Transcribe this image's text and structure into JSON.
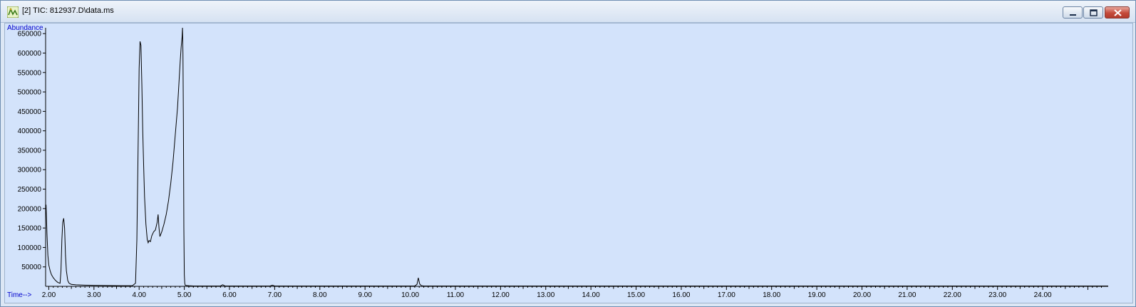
{
  "window": {
    "title": "[2] TIC: 812937.D\\data.ms",
    "icon": "chromatogram-app-icon",
    "controls": [
      "minimize",
      "maximize",
      "close"
    ]
  },
  "chart_data": {
    "type": "line",
    "title": "",
    "xlabel": "Time-->",
    "ylabel": "Abundance",
    "xlim": [
      1.93,
      25.45
    ],
    "ylim": [
      0,
      665000
    ],
    "grid": false,
    "x_ticks": [
      2,
      3,
      4,
      5,
      6,
      7,
      8,
      9,
      10,
      11,
      12,
      13,
      14,
      15,
      16,
      17,
      18,
      19,
      20,
      21,
      22,
      23,
      24
    ],
    "x_tick_labels": [
      "2.00",
      "3.00",
      "4.00",
      "5.00",
      "6.00",
      "7.00",
      "8.00",
      "9.00",
      "10.00",
      "11.00",
      "12.00",
      "13.00",
      "14.00",
      "15.00",
      "16.00",
      "17.00",
      "18.00",
      "19.00",
      "20.00",
      "21.00",
      "22.00",
      "23.00",
      "24.00"
    ],
    "y_ticks": [
      50000,
      100000,
      150000,
      200000,
      250000,
      300000,
      350000,
      400000,
      450000,
      500000,
      550000,
      600000,
      650000
    ],
    "y_tick_labels": [
      "50000",
      "100000",
      "150000",
      "200000",
      "250000",
      "300000",
      "350000",
      "400000",
      "450000",
      "500000",
      "550000",
      "600000",
      "650000"
    ],
    "series": [
      {
        "color": "#000000",
        "x": [
          1.94,
          1.96,
          1.98,
          2.0,
          2.03,
          2.06,
          2.1,
          2.15,
          2.2,
          2.25,
          2.27,
          2.29,
          2.31,
          2.33,
          2.35,
          2.37,
          2.39,
          2.42,
          2.45,
          2.5,
          2.6,
          2.8,
          3.0,
          3.3,
          3.6,
          3.85,
          3.92,
          3.95,
          3.98,
          4.0,
          4.02,
          4.04,
          4.06,
          4.08,
          4.1,
          4.12,
          4.15,
          4.18,
          4.2,
          4.22,
          4.25,
          4.28,
          4.32,
          4.36,
          4.4,
          4.42,
          4.44,
          4.46,
          4.5,
          4.55,
          4.6,
          4.65,
          4.7,
          4.75,
          4.8,
          4.85,
          4.88,
          4.91,
          4.93,
          4.95,
          4.96,
          4.97,
          4.98,
          4.99,
          5.0,
          5.01,
          5.02,
          5.05,
          5.1,
          5.2,
          5.5,
          5.8,
          5.85,
          5.9,
          6.0,
          6.5,
          6.9,
          6.95,
          7.0,
          7.5,
          8.0,
          8.5,
          9.0,
          9.5,
          10.0,
          10.1,
          10.15,
          10.18,
          10.21,
          10.25,
          10.3,
          10.5,
          11.0,
          12.0,
          13.0,
          14.0,
          15.0,
          16.0,
          17.0,
          18.0,
          19.0,
          20.0,
          21.0,
          22.0,
          23.0,
          24.0,
          25.0,
          25.45
        ],
        "y": [
          210000,
          135000,
          80000,
          55000,
          40000,
          30000,
          22000,
          15000,
          10000,
          8000,
          40000,
          120000,
          165000,
          175000,
          150000,
          80000,
          40000,
          15000,
          8000,
          5000,
          4000,
          3000,
          2500,
          2000,
          1500,
          1500,
          8000,
          120000,
          380000,
          560000,
          630000,
          620000,
          520000,
          400000,
          310000,
          230000,
          160000,
          120000,
          112000,
          118000,
          115000,
          130000,
          140000,
          145000,
          165000,
          185000,
          150000,
          128000,
          140000,
          160000,
          185000,
          220000,
          265000,
          320000,
          390000,
          460000,
          520000,
          580000,
          615000,
          640000,
          665000,
          600000,
          420000,
          150000,
          30000,
          8000,
          3000,
          2000,
          1500,
          1000,
          1000,
          1000,
          4000,
          1000,
          1000,
          1000,
          1000,
          3000,
          1000,
          1000,
          1000,
          1000,
          1000,
          1000,
          1000,
          1000,
          5000,
          22000,
          6000,
          1500,
          1000,
          1000,
          1000,
          1000,
          1000,
          1000,
          1000,
          1000,
          1000,
          1000,
          1000,
          1000,
          1000,
          1000,
          1000,
          1000,
          1000,
          1000
        ]
      }
    ]
  }
}
